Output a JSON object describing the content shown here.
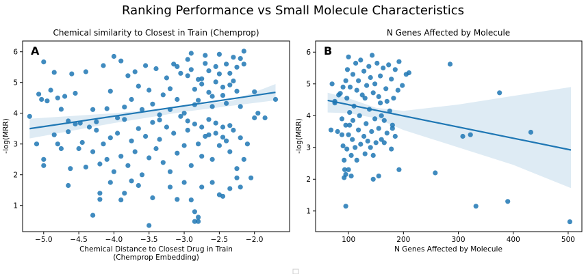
{
  "figure": {
    "title": "Ranking Performance vs Small Molecule Characteristics"
  },
  "chart_data": [
    {
      "type": "scatter",
      "panel_label": "A",
      "title": "Chemical similarity to Closest in Train (Chemprop)",
      "xlabel": "Chemical Distance to Closest Drug in Train",
      "xlabel_line2": "(Chemprop Embedding)",
      "ylabel": "-log(MRR)",
      "xlim": [
        -5.3,
        -1.5
      ],
      "ylim": [
        0.15,
        6.35
      ],
      "xticks": [
        -5.0,
        -4.5,
        -4.0,
        -3.5,
        -3.0,
        -2.5,
        -2.0
      ],
      "xtick_labels": [
        "−5.0",
        "−4.5",
        "−4.0",
        "−3.5",
        "−3.0",
        "−2.5",
        "−2.0"
      ],
      "yticks": [
        1,
        2,
        3,
        4,
        5,
        6
      ],
      "grid": false,
      "color": "#1f77b4",
      "regression": {
        "x": [
          -5.2,
          -1.7
        ],
        "y": [
          3.5,
          4.68
        ]
      },
      "ci_band": {
        "x": [
          -5.2,
          -4.0,
          -3.0,
          -2.3,
          -1.7
        ],
        "lower": [
          3.18,
          3.68,
          4.05,
          4.25,
          4.42
        ],
        "upper": [
          3.82,
          4.0,
          4.22,
          4.42,
          4.95
        ]
      },
      "points": [
        [
          -5.2,
          3.9
        ],
        [
          -5.07,
          4.62
        ],
        [
          -5.03,
          4.45
        ],
        [
          -5.0,
          5.67
        ],
        [
          -4.95,
          4.4
        ],
        [
          -4.9,
          4.75
        ],
        [
          -4.85,
          5.33
        ],
        [
          -4.8,
          4.5
        ],
        [
          -4.75,
          4.13
        ],
        [
          -4.7,
          4.55
        ],
        [
          -4.65,
          3.75
        ],
        [
          -4.6,
          5.28
        ],
        [
          -4.55,
          4.65
        ],
        [
          -4.48,
          3.68
        ],
        [
          -4.4,
          5.35
        ],
        [
          -4.3,
          4.12
        ],
        [
          -4.25,
          3.72
        ],
        [
          -4.15,
          5.55
        ],
        [
          -4.1,
          4.15
        ],
        [
          -4.05,
          4.72
        ],
        [
          -4.0,
          5.85
        ],
        [
          -3.95,
          3.85
        ],
        [
          -3.9,
          5.7
        ],
        [
          -3.85,
          4.2
        ],
        [
          -3.8,
          5.22
        ],
        [
          -3.75,
          4.45
        ],
        [
          -3.7,
          5.35
        ],
        [
          -3.65,
          4.88
        ],
        [
          -3.6,
          4.12
        ],
        [
          -3.55,
          5.55
        ],
        [
          -3.5,
          4.75
        ],
        [
          -3.45,
          4.3
        ],
        [
          -3.4,
          5.45
        ],
        [
          -3.35,
          3.95
        ],
        [
          -3.3,
          4.6
        ],
        [
          -3.25,
          5.15
        ],
        [
          -3.2,
          4.8
        ],
        [
          -3.15,
          5.6
        ],
        [
          -3.1,
          4.45
        ],
        [
          -3.05,
          5.3
        ],
        [
          -3.0,
          4.0
        ],
        [
          -2.95,
          5.75
        ],
        [
          -2.9,
          5.42
        ],
        [
          -2.85,
          4.28
        ],
        [
          -2.8,
          5.1
        ],
        [
          -2.75,
          4.95
        ],
        [
          -2.7,
          5.62
        ],
        [
          -2.65,
          5.38
        ],
        [
          -2.6,
          4.55
        ],
        [
          -2.55,
          5.52
        ],
        [
          -2.5,
          5.28
        ],
        [
          -2.45,
          4.85
        ],
        [
          -2.4,
          5.6
        ],
        [
          -2.35,
          5.3
        ],
        [
          -2.3,
          5.05
        ],
        [
          -2.25,
          5.5
        ],
        [
          -2.2,
          5.78
        ],
        [
          -2.15,
          5.6
        ],
        [
          -2.95,
          5.22
        ],
        [
          -2.75,
          5.12
        ],
        [
          -2.55,
          5.02
        ],
        [
          -2.35,
          4.92
        ],
        [
          -2.85,
          4.78
        ],
        [
          -2.65,
          4.68
        ],
        [
          -2.45,
          4.58
        ],
        [
          -2.25,
          4.72
        ],
        [
          -2.9,
          5.95
        ],
        [
          -2.7,
          5.88
        ],
        [
          -2.5,
          5.92
        ],
        [
          -2.3,
          5.82
        ],
        [
          -2.15,
          6.02
        ],
        [
          -3.1,
          5.52
        ],
        [
          -2.8,
          4.42
        ],
        [
          -2.6,
          4.22
        ],
        [
          -2.4,
          4.32
        ],
        [
          -3.2,
          4.12
        ],
        [
          -2.2,
          4.22
        ],
        [
          -5.1,
          3.0
        ],
        [
          -5.0,
          2.5
        ],
        [
          -5.0,
          2.3
        ],
        [
          -4.85,
          3.3
        ],
        [
          -4.8,
          3.0
        ],
        [
          -4.75,
          2.85
        ],
        [
          -4.65,
          3.4
        ],
        [
          -4.62,
          2.2
        ],
        [
          -4.55,
          3.65
        ],
        [
          -4.5,
          2.85
        ],
        [
          -4.45,
          3.05
        ],
        [
          -4.4,
          2.25
        ],
        [
          -4.35,
          3.55
        ],
        [
          -4.3,
          2.75
        ],
        [
          -4.25,
          3.45
        ],
        [
          -4.2,
          2.35
        ],
        [
          -4.15,
          3.0
        ],
        [
          -4.1,
          2.5
        ],
        [
          -4.05,
          3.2
        ],
        [
          -4.0,
          2.1
        ],
        [
          -3.95,
          3.35
        ],
        [
          -3.9,
          2.6
        ],
        [
          -3.85,
          3.8
        ],
        [
          -3.8,
          2.3
        ],
        [
          -3.75,
          3.1
        ],
        [
          -3.7,
          2.75
        ],
        [
          -3.65,
          3.5
        ],
        [
          -3.6,
          2.0
        ],
        [
          -3.55,
          3.25
        ],
        [
          -3.5,
          2.55
        ],
        [
          -3.45,
          3.7
        ],
        [
          -3.4,
          2.85
        ],
        [
          -3.35,
          3.15
        ],
        [
          -3.3,
          2.4
        ],
        [
          -3.25,
          3.55
        ],
        [
          -3.2,
          2.1
        ],
        [
          -3.15,
          3.35
        ],
        [
          -3.1,
          2.7
        ],
        [
          -3.05,
          3.9
        ],
        [
          -3.0,
          2.95
        ],
        [
          -2.95,
          3.45
        ],
        [
          -2.9,
          2.3
        ],
        [
          -2.85,
          3.65
        ],
        [
          -2.8,
          3.0
        ],
        [
          -2.75,
          2.6
        ],
        [
          -2.7,
          3.25
        ],
        [
          -2.65,
          3.8
        ],
        [
          -2.6,
          2.5
        ],
        [
          -2.55,
          3.35
        ],
        [
          -2.5,
          2.95
        ],
        [
          -2.45,
          3.55
        ],
        [
          -2.4,
          3.1
        ],
        [
          -2.35,
          2.75
        ],
        [
          -2.3,
          3.45
        ],
        [
          -2.25,
          2.2
        ],
        [
          -2.2,
          3.2
        ],
        [
          -2.15,
          2.5
        ],
        [
          -2.1,
          3.0
        ],
        [
          -2.0,
          3.85
        ],
        [
          -2.95,
          3.75
        ],
        [
          -2.75,
          3.55
        ],
        [
          -2.55,
          3.68
        ],
        [
          -2.35,
          3.6
        ],
        [
          -3.35,
          3.78
        ],
        [
          -2.65,
          3.3
        ],
        [
          -2.45,
          3.22
        ],
        [
          -4.65,
          1.65
        ],
        [
          -4.3,
          0.68
        ],
        [
          -4.2,
          1.2
        ],
        [
          -3.9,
          1.18
        ],
        [
          -3.85,
          1.4
        ],
        [
          -3.75,
          1.8
        ],
        [
          -3.65,
          1.65
        ],
        [
          -3.45,
          1.25
        ],
        [
          -3.2,
          1.6
        ],
        [
          -3.1,
          1.2
        ],
        [
          -2.9,
          1.18
        ],
        [
          -2.85,
          0.8
        ],
        [
          -2.85,
          0.48
        ],
        [
          -2.8,
          0.48
        ],
        [
          -2.75,
          1.6
        ],
        [
          -2.5,
          1.35
        ],
        [
          -2.45,
          1.3
        ],
        [
          -2.35,
          1.55
        ],
        [
          -2.25,
          1.9
        ],
        [
          -3.5,
          0.35
        ],
        [
          -2.8,
          0.62
        ],
        [
          -3.0,
          1.75
        ],
        [
          -2.6,
          1.75
        ],
        [
          -4.05,
          1.75
        ],
        [
          -4.2,
          1.4
        ],
        [
          -2.2,
          1.6
        ],
        [
          -2.05,
          1.9
        ],
        [
          -1.7,
          4.45
        ],
        [
          -1.85,
          3.85
        ],
        [
          -2.0,
          4.7
        ],
        [
          -1.95,
          4.0
        ]
      ]
    },
    {
      "type": "scatter",
      "panel_label": "B",
      "title": "N Genes Affected by Molecule",
      "xlabel": "N Genes Affected by Molecule",
      "ylabel": "-log(MRR)",
      "xlim": [
        40,
        525
      ],
      "ylim": [
        0.35,
        6.35
      ],
      "xticks": [
        100,
        200,
        300,
        400,
        500
      ],
      "xtick_labels": [
        "100",
        "200",
        "300",
        "400",
        "500"
      ],
      "yticks": [
        1,
        2,
        3,
        4,
        5,
        6
      ],
      "grid": false,
      "color": "#1f77b4",
      "regression": {
        "x": [
          62,
          505
        ],
        "y": [
          4.48,
          2.92
        ]
      },
      "ci_band": {
        "x": [
          62,
          100,
          150,
          200,
          300,
          400,
          505
        ],
        "lower": [
          4.1,
          4.08,
          3.92,
          3.55,
          3.0,
          2.45,
          1.72
        ],
        "upper": [
          4.72,
          4.55,
          4.25,
          4.15,
          4.35,
          4.62,
          4.9
        ]
      },
      "points": [
        [
          68,
          3.55
        ],
        [
          75,
          4.45
        ],
        [
          80,
          3.5
        ],
        [
          85,
          4.7
        ],
        [
          88,
          3.9
        ],
        [
          90,
          3.05
        ],
        [
          92,
          2.6
        ],
        [
          93,
          2.3
        ],
        [
          95,
          3.7
        ],
        [
          97,
          2.95
        ],
        [
          100,
          3.4
        ],
        [
          102,
          4.1
        ],
        [
          105,
          2.75
        ],
        [
          107,
          3.25
        ],
        [
          108,
          3.85
        ],
        [
          110,
          4.3
        ],
        [
          112,
          3.0
        ],
        [
          115,
          2.6
        ],
        [
          118,
          3.55
        ],
        [
          120,
          4.0
        ],
        [
          122,
          3.1
        ],
        [
          125,
          4.65
        ],
        [
          128,
          3.35
        ],
        [
          130,
          2.8
        ],
        [
          132,
          3.75
        ],
        [
          135,
          3.2
        ],
        [
          138,
          4.2
        ],
        [
          140,
          3.0
        ],
        [
          142,
          3.5
        ],
        [
          145,
          2.75
        ],
        [
          148,
          3.9
        ],
        [
          150,
          3.15
        ],
        [
          155,
          3.6
        ],
        [
          158,
          4.4
        ],
        [
          160,
          3.25
        ],
        [
          165,
          3.85
        ],
        [
          170,
          3.45
        ],
        [
          175,
          4.15
        ],
        [
          180,
          3.7
        ],
        [
          185,
          3.35
        ],
        [
          95,
          5.1
        ],
        [
          98,
          5.45
        ],
        [
          100,
          5.85
        ],
        [
          103,
          4.9
        ],
        [
          108,
          5.3
        ],
        [
          113,
          5.65
        ],
        [
          118,
          5.1
        ],
        [
          122,
          5.75
        ],
        [
          128,
          5.4
        ],
        [
          133,
          4.95
        ],
        [
          137,
          5.55
        ],
        [
          140,
          5.2
        ],
        [
          143,
          5.9
        ],
        [
          148,
          5.0
        ],
        [
          152,
          5.65
        ],
        [
          158,
          5.25
        ],
        [
          163,
          5.5
        ],
        [
          168,
          4.85
        ],
        [
          173,
          5.6
        ],
        [
          178,
          5.15
        ],
        [
          185,
          5.45
        ],
        [
          192,
          5.7
        ],
        [
          198,
          4.95
        ],
        [
          205,
          5.3
        ],
        [
          210,
          5.35
        ],
        [
          190,
          4.8
        ],
        [
          182,
          4.55
        ],
        [
          170,
          4.45
        ],
        [
          155,
          4.6
        ],
        [
          145,
          4.72
        ],
        [
          92,
          2.05
        ],
        [
          95,
          2.15
        ],
        [
          100,
          2.3
        ],
        [
          105,
          2.1
        ],
        [
          145,
          2.0
        ],
        [
          155,
          2.1
        ],
        [
          192,
          2.3
        ],
        [
          258,
          2.2
        ],
        [
          95,
          1.15
        ],
        [
          285,
          5.62
        ],
        [
          375,
          4.72
        ],
        [
          308,
          3.35
        ],
        [
          322,
          3.4
        ],
        [
          432,
          3.48
        ],
        [
          332,
          1.15
        ],
        [
          390,
          1.3
        ],
        [
          503,
          0.66
        ],
        [
          75,
          4.4
        ],
        [
          82,
          4.65
        ],
        [
          90,
          4.9
        ],
        [
          97,
          4.55
        ],
        [
          160,
          4.0
        ],
        [
          180,
          3.6
        ],
        [
          130,
          4.55
        ],
        [
          115,
          4.8
        ],
        [
          165,
          3.15
        ],
        [
          178,
          2.95
        ],
        [
          88,
          3.4
        ],
        [
          102,
          3.7
        ],
        [
          70,
          5.0
        ]
      ]
    }
  ],
  "legend": {
    "placement": "bottom-center"
  }
}
